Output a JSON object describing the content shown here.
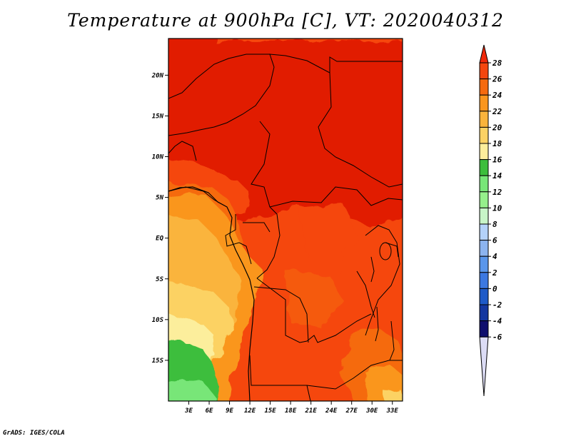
{
  "title": "Temperature at 900hPa [C], VT: 2020040312",
  "credit": "GrADS: IGES/COLA",
  "map": {
    "lat_labels": [
      "20N",
      "15N",
      "10N",
      "5N",
      "EQ",
      "5S",
      "10S",
      "15S"
    ],
    "lat_values": [
      20,
      15,
      10,
      5,
      0,
      -5,
      -10,
      -15
    ],
    "lon_labels": [
      "3E",
      "6E",
      "9E",
      "12E",
      "15E",
      "18E",
      "21E",
      "24E",
      "27E",
      "30E",
      "33E"
    ],
    "lon_values": [
      3,
      6,
      9,
      12,
      15,
      18,
      21,
      24,
      27,
      30,
      33
    ],
    "lon_range": [
      0,
      34.5
    ],
    "lat_range": [
      -20,
      24.5
    ]
  },
  "colorbar": {
    "labels": [
      "28",
      "26",
      "24",
      "22",
      "20",
      "18",
      "16",
      "14",
      "12",
      "10",
      "8",
      "6",
      "4",
      "2",
      "0",
      "-2",
      "-4",
      "-6"
    ],
    "colors": [
      "#f0280a",
      "#f5460f",
      "#f56a0f",
      "#fa961e",
      "#fab43c",
      "#fcd264",
      "#fcee9c",
      "#3cbe3c",
      "#78e678",
      "#96f08c",
      "#c8f5c8",
      "#b4d2fa",
      "#8cb4f0",
      "#5a96eb",
      "#3c78e1",
      "#1e5ac8",
      "#1437a0",
      "#0f0f6e",
      "#dcdcf5"
    ]
  }
}
